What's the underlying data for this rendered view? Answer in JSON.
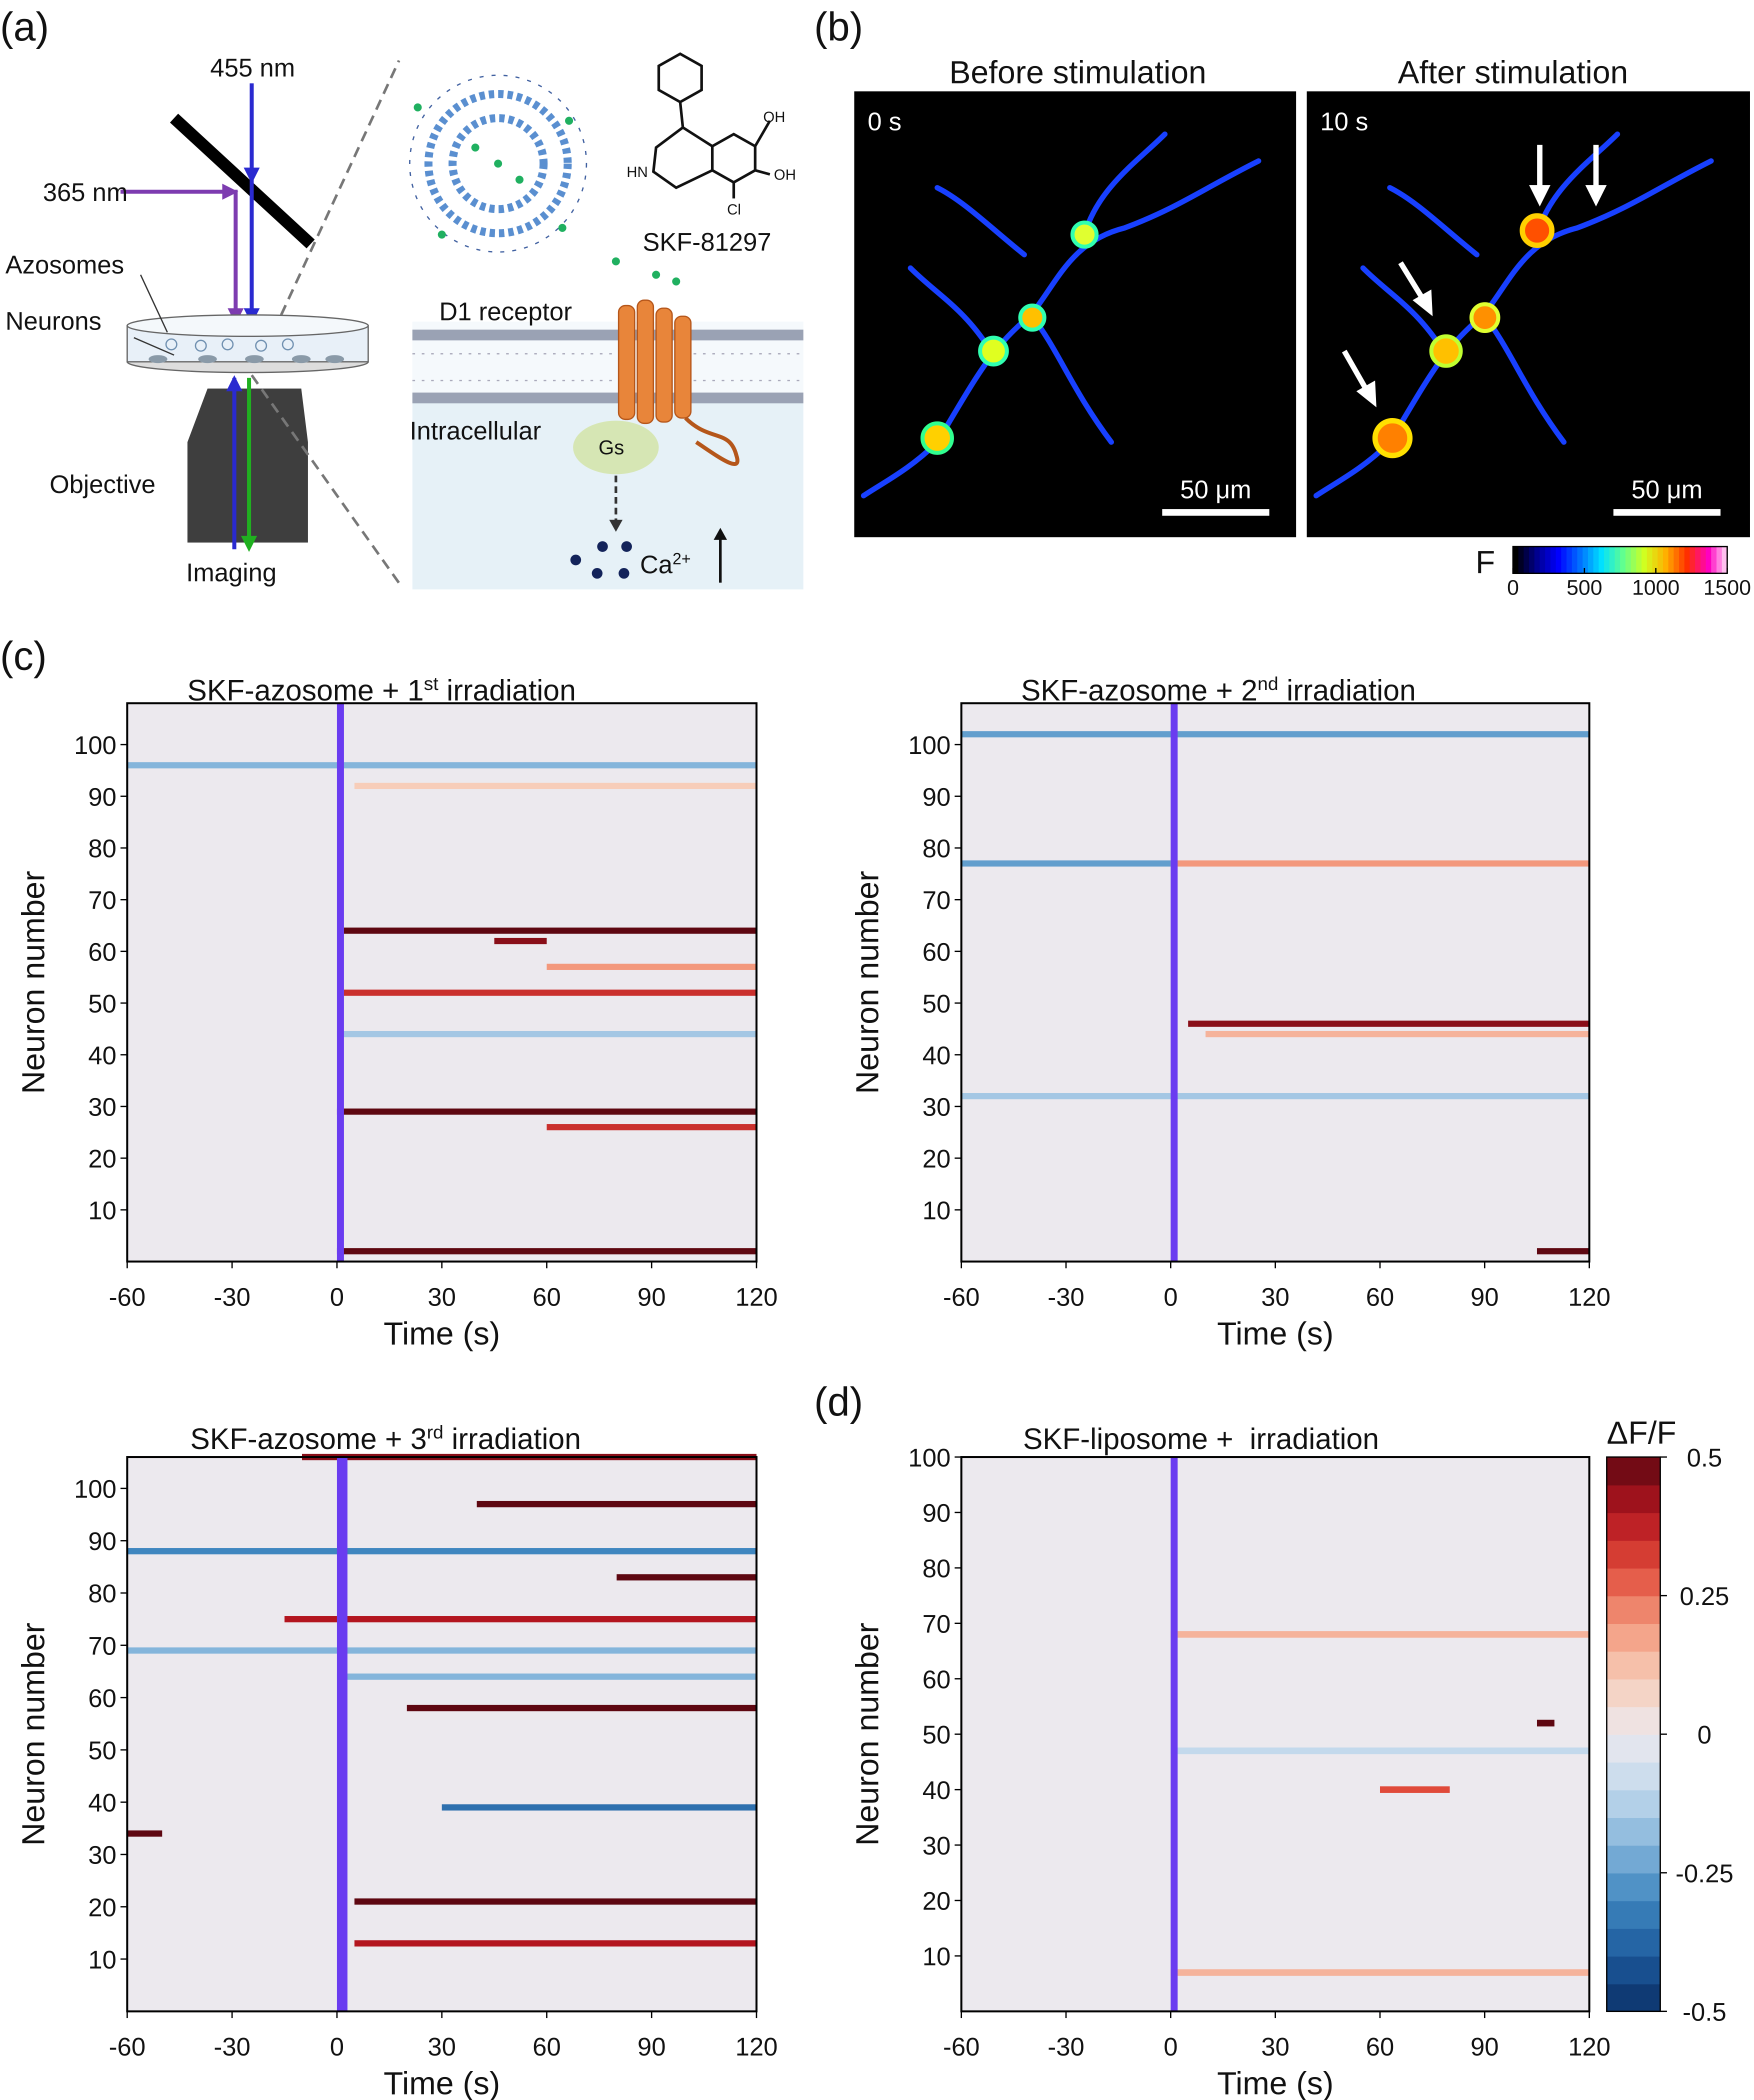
{
  "panels": {
    "a": "(a)",
    "b": "(b)",
    "c": "(c)",
    "d": "(d)"
  },
  "schematic": {
    "labels": {
      "blue_light": "455 nm",
      "uv_light": "365 nm",
      "azosomes": "Azosomes",
      "neurons": "Neurons",
      "objective": "Objective",
      "imaging": "Imaging",
      "receptor": "D1 receptor",
      "intracellular": "Intracellular",
      "gs": "Gs",
      "drug": "SKF-81297"
    },
    "structure_labels": [
      "OH",
      "OH",
      "HN",
      "Cl"
    ],
    "calcium": {
      "base": "Ca",
      "sup": "2+"
    }
  },
  "imaging": {
    "before_title": "Before stimulation",
    "after_title": "After stimulation",
    "before_time": "0 s",
    "after_time": "10 s",
    "scale_bar_before": "50 μm",
    "scale_bar_after": "50 μm",
    "colorbar": {
      "label": "F",
      "lim": [
        0,
        1500
      ],
      "ticks": [
        0,
        500,
        1000,
        1500
      ],
      "colors": [
        "#000000",
        "#00008f",
        "#0000ff",
        "#0070ff",
        "#00e0ff",
        "#60ff90",
        "#d0ff20",
        "#ffb000",
        "#ff3000",
        "#ff00c0",
        "#ffffff"
      ]
    }
  },
  "chart_data": [
    {
      "type": "heatmap",
      "title": [
        "SKF-azosome + 1",
        "st",
        " irradiation"
      ],
      "xlabel": "Time (s)",
      "ylabel": "Neuron number",
      "xlim": [
        -60,
        120
      ],
      "xticks": [
        -60,
        -30,
        0,
        30,
        60,
        90,
        120
      ],
      "ylim": [
        0,
        108
      ],
      "yticks": [
        10,
        20,
        30,
        40,
        50,
        60,
        70,
        80,
        90,
        100
      ],
      "stimulus": [
        0,
        2
      ],
      "stimulus_color": "#6a3cf0",
      "responses": [
        {
          "neuron": 96,
          "start": -60,
          "end": 120,
          "value": -0.2
        },
        {
          "neuron": 92,
          "start": 5,
          "end": 120,
          "value": 0.1
        },
        {
          "neuron": 64,
          "start": 2,
          "end": 120,
          "value": 0.5
        },
        {
          "neuron": 62,
          "start": 45,
          "end": 60,
          "value": 0.45
        },
        {
          "neuron": 57,
          "start": 60,
          "end": 120,
          "value": 0.2
        },
        {
          "neuron": 52,
          "start": 2,
          "end": 120,
          "value": 0.35
        },
        {
          "neuron": 44,
          "start": 0,
          "end": 120,
          "value": -0.15
        },
        {
          "neuron": 29,
          "start": 0,
          "end": 120,
          "value": 0.5
        },
        {
          "neuron": 26,
          "start": 60,
          "end": 120,
          "value": 0.35
        },
        {
          "neuron": 2,
          "start": 0,
          "end": 120,
          "value": 0.5
        }
      ]
    },
    {
      "type": "heatmap",
      "title": [
        "SKF-azosome + 2",
        "nd",
        " irradiation"
      ],
      "xlabel": "Time (s)",
      "ylabel": "Neuron number",
      "xlim": [
        -60,
        120
      ],
      "xticks": [
        -60,
        -30,
        0,
        30,
        60,
        90,
        120
      ],
      "ylim": [
        0,
        108
      ],
      "yticks": [
        10,
        20,
        30,
        40,
        50,
        60,
        70,
        80,
        90,
        100
      ],
      "stimulus": [
        0,
        2
      ],
      "stimulus_color": "#6a3cf0",
      "responses": [
        {
          "neuron": 102,
          "start": -60,
          "end": 120,
          "value": -0.25
        },
        {
          "neuron": 77,
          "start": -60,
          "end": 0,
          "value": -0.25
        },
        {
          "neuron": 77,
          "start": 0,
          "end": 120,
          "value": 0.2
        },
        {
          "neuron": 46,
          "start": 5,
          "end": 120,
          "value": 0.45
        },
        {
          "neuron": 44,
          "start": 10,
          "end": 120,
          "value": 0.15
        },
        {
          "neuron": 32,
          "start": -60,
          "end": 120,
          "value": -0.15
        },
        {
          "neuron": 2,
          "start": 105,
          "end": 120,
          "value": 0.5
        }
      ]
    },
    {
      "type": "heatmap",
      "title": [
        "SKF-azosome + 3",
        "rd",
        " irradiation"
      ],
      "xlabel": "Time (s)",
      "ylabel": "Neuron number",
      "xlim": [
        -60,
        120
      ],
      "xticks": [
        -60,
        -30,
        0,
        30,
        60,
        90,
        120
      ],
      "ylim": [
        0,
        106
      ],
      "yticks": [
        10,
        20,
        30,
        40,
        50,
        60,
        70,
        80,
        90,
        100
      ],
      "stimulus": [
        0,
        3
      ],
      "stimulus_color": "#6a3cf0",
      "responses": [
        {
          "neuron": 106,
          "start": -10,
          "end": 120,
          "value": 0.45
        },
        {
          "neuron": 97,
          "start": 40,
          "end": 120,
          "value": 0.5
        },
        {
          "neuron": 88,
          "start": -60,
          "end": 120,
          "value": -0.3
        },
        {
          "neuron": 83,
          "start": 80,
          "end": 120,
          "value": 0.5
        },
        {
          "neuron": 75,
          "start": -15,
          "end": 120,
          "value": 0.4
        },
        {
          "neuron": 69,
          "start": -60,
          "end": 120,
          "value": -0.2
        },
        {
          "neuron": 64,
          "start": 0,
          "end": 120,
          "value": -0.2
        },
        {
          "neuron": 58,
          "start": 20,
          "end": 120,
          "value": 0.5
        },
        {
          "neuron": 39,
          "start": 30,
          "end": 120,
          "value": -0.35
        },
        {
          "neuron": 34,
          "start": -60,
          "end": -50,
          "value": 0.5
        },
        {
          "neuron": 21,
          "start": 5,
          "end": 120,
          "value": 0.5
        },
        {
          "neuron": 13,
          "start": 5,
          "end": 120,
          "value": 0.4
        }
      ]
    },
    {
      "type": "heatmap",
      "title": [
        "SKF-liposome +  irradiation"
      ],
      "xlabel": "Time (s)",
      "ylabel": "Neuron number",
      "xlim": [
        -60,
        120
      ],
      "xticks": [
        -60,
        -30,
        0,
        30,
        60,
        90,
        120
      ],
      "ylim": [
        0,
        100
      ],
      "yticks": [
        10,
        20,
        30,
        40,
        50,
        60,
        70,
        80,
        90,
        100
      ],
      "stimulus": [
        0,
        2
      ],
      "stimulus_color": "#6a3cf0",
      "responses": [
        {
          "neuron": 68,
          "start": 0,
          "end": 120,
          "value": 0.15
        },
        {
          "neuron": 52,
          "start": 105,
          "end": 110,
          "value": 0.5
        },
        {
          "neuron": 47,
          "start": 0,
          "end": 120,
          "value": -0.1
        },
        {
          "neuron": 40,
          "start": 60,
          "end": 80,
          "value": 0.3
        },
        {
          "neuron": 7,
          "start": 0,
          "end": 120,
          "value": 0.15
        }
      ],
      "colorbar": {
        "label": "ΔF/F",
        "lim": [
          -0.5,
          0.5
        ],
        "ticks": [
          0.5,
          0.25,
          0,
          -0.25,
          -0.5
        ],
        "colors": [
          "#0b2f66",
          "#1c5a9c",
          "#3f86bf",
          "#84b5db",
          "#c3d9ec",
          "#ece9ee",
          "#f7cdb9",
          "#f3987c",
          "#e04a3a",
          "#b3151f",
          "#5e0711"
        ]
      }
    }
  ]
}
